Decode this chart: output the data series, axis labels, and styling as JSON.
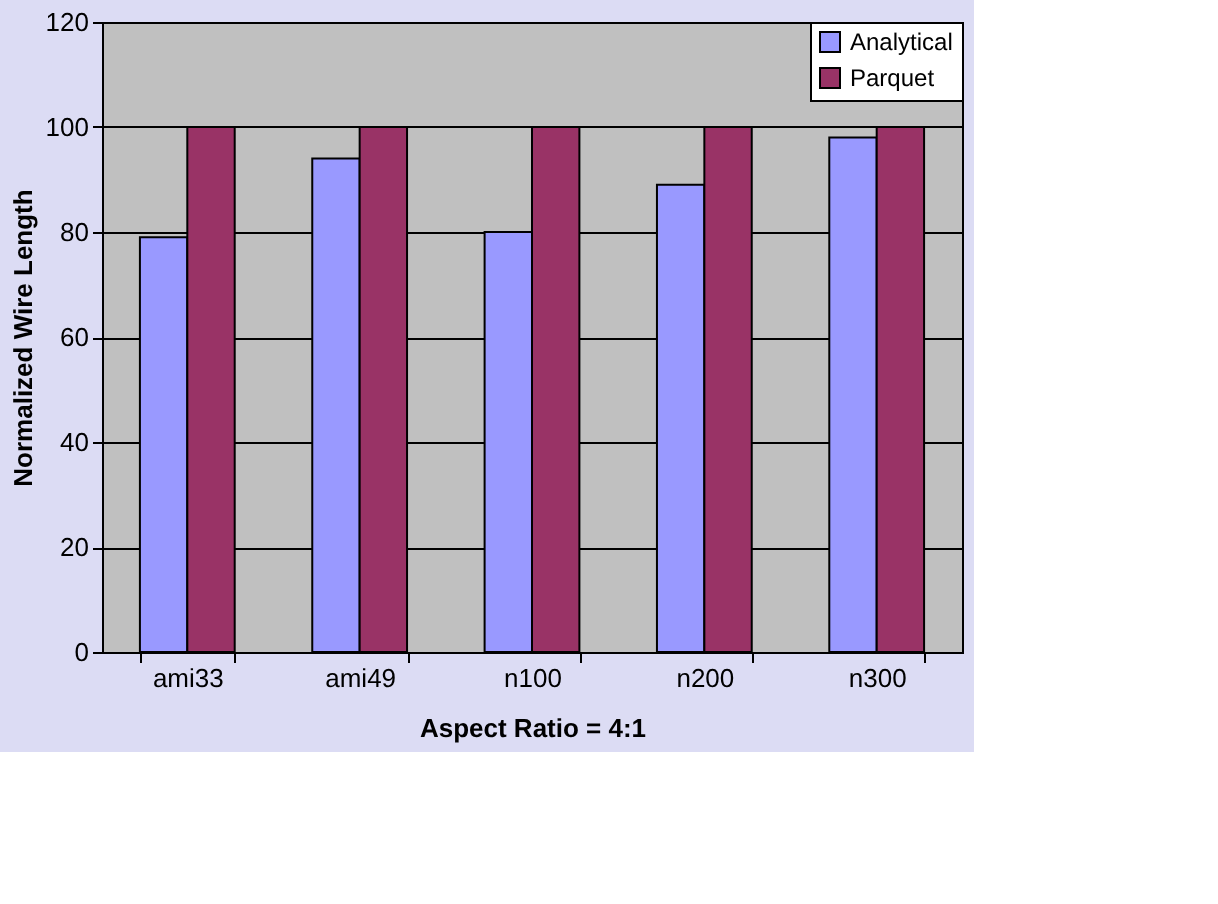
{
  "chart_data": {
    "type": "bar",
    "xlabel": "Aspect Ratio = 4:1",
    "ylabel": "Normalized Wire Length",
    "categories": [
      "ami33",
      "ami49",
      "n100",
      "n200",
      "n300"
    ],
    "series": [
      {
        "name": "Analytical",
        "color": "#9999ff",
        "values": [
          79,
          94,
          80,
          89,
          98
        ]
      },
      {
        "name": "Parquet",
        "color": "#993366",
        "values": [
          100,
          100,
          100,
          100,
          100
        ]
      }
    ],
    "ylim": [
      0,
      120
    ],
    "yticks": [
      0,
      20,
      40,
      60,
      80,
      100,
      120
    ],
    "grid": "y",
    "legend": "top right"
  }
}
